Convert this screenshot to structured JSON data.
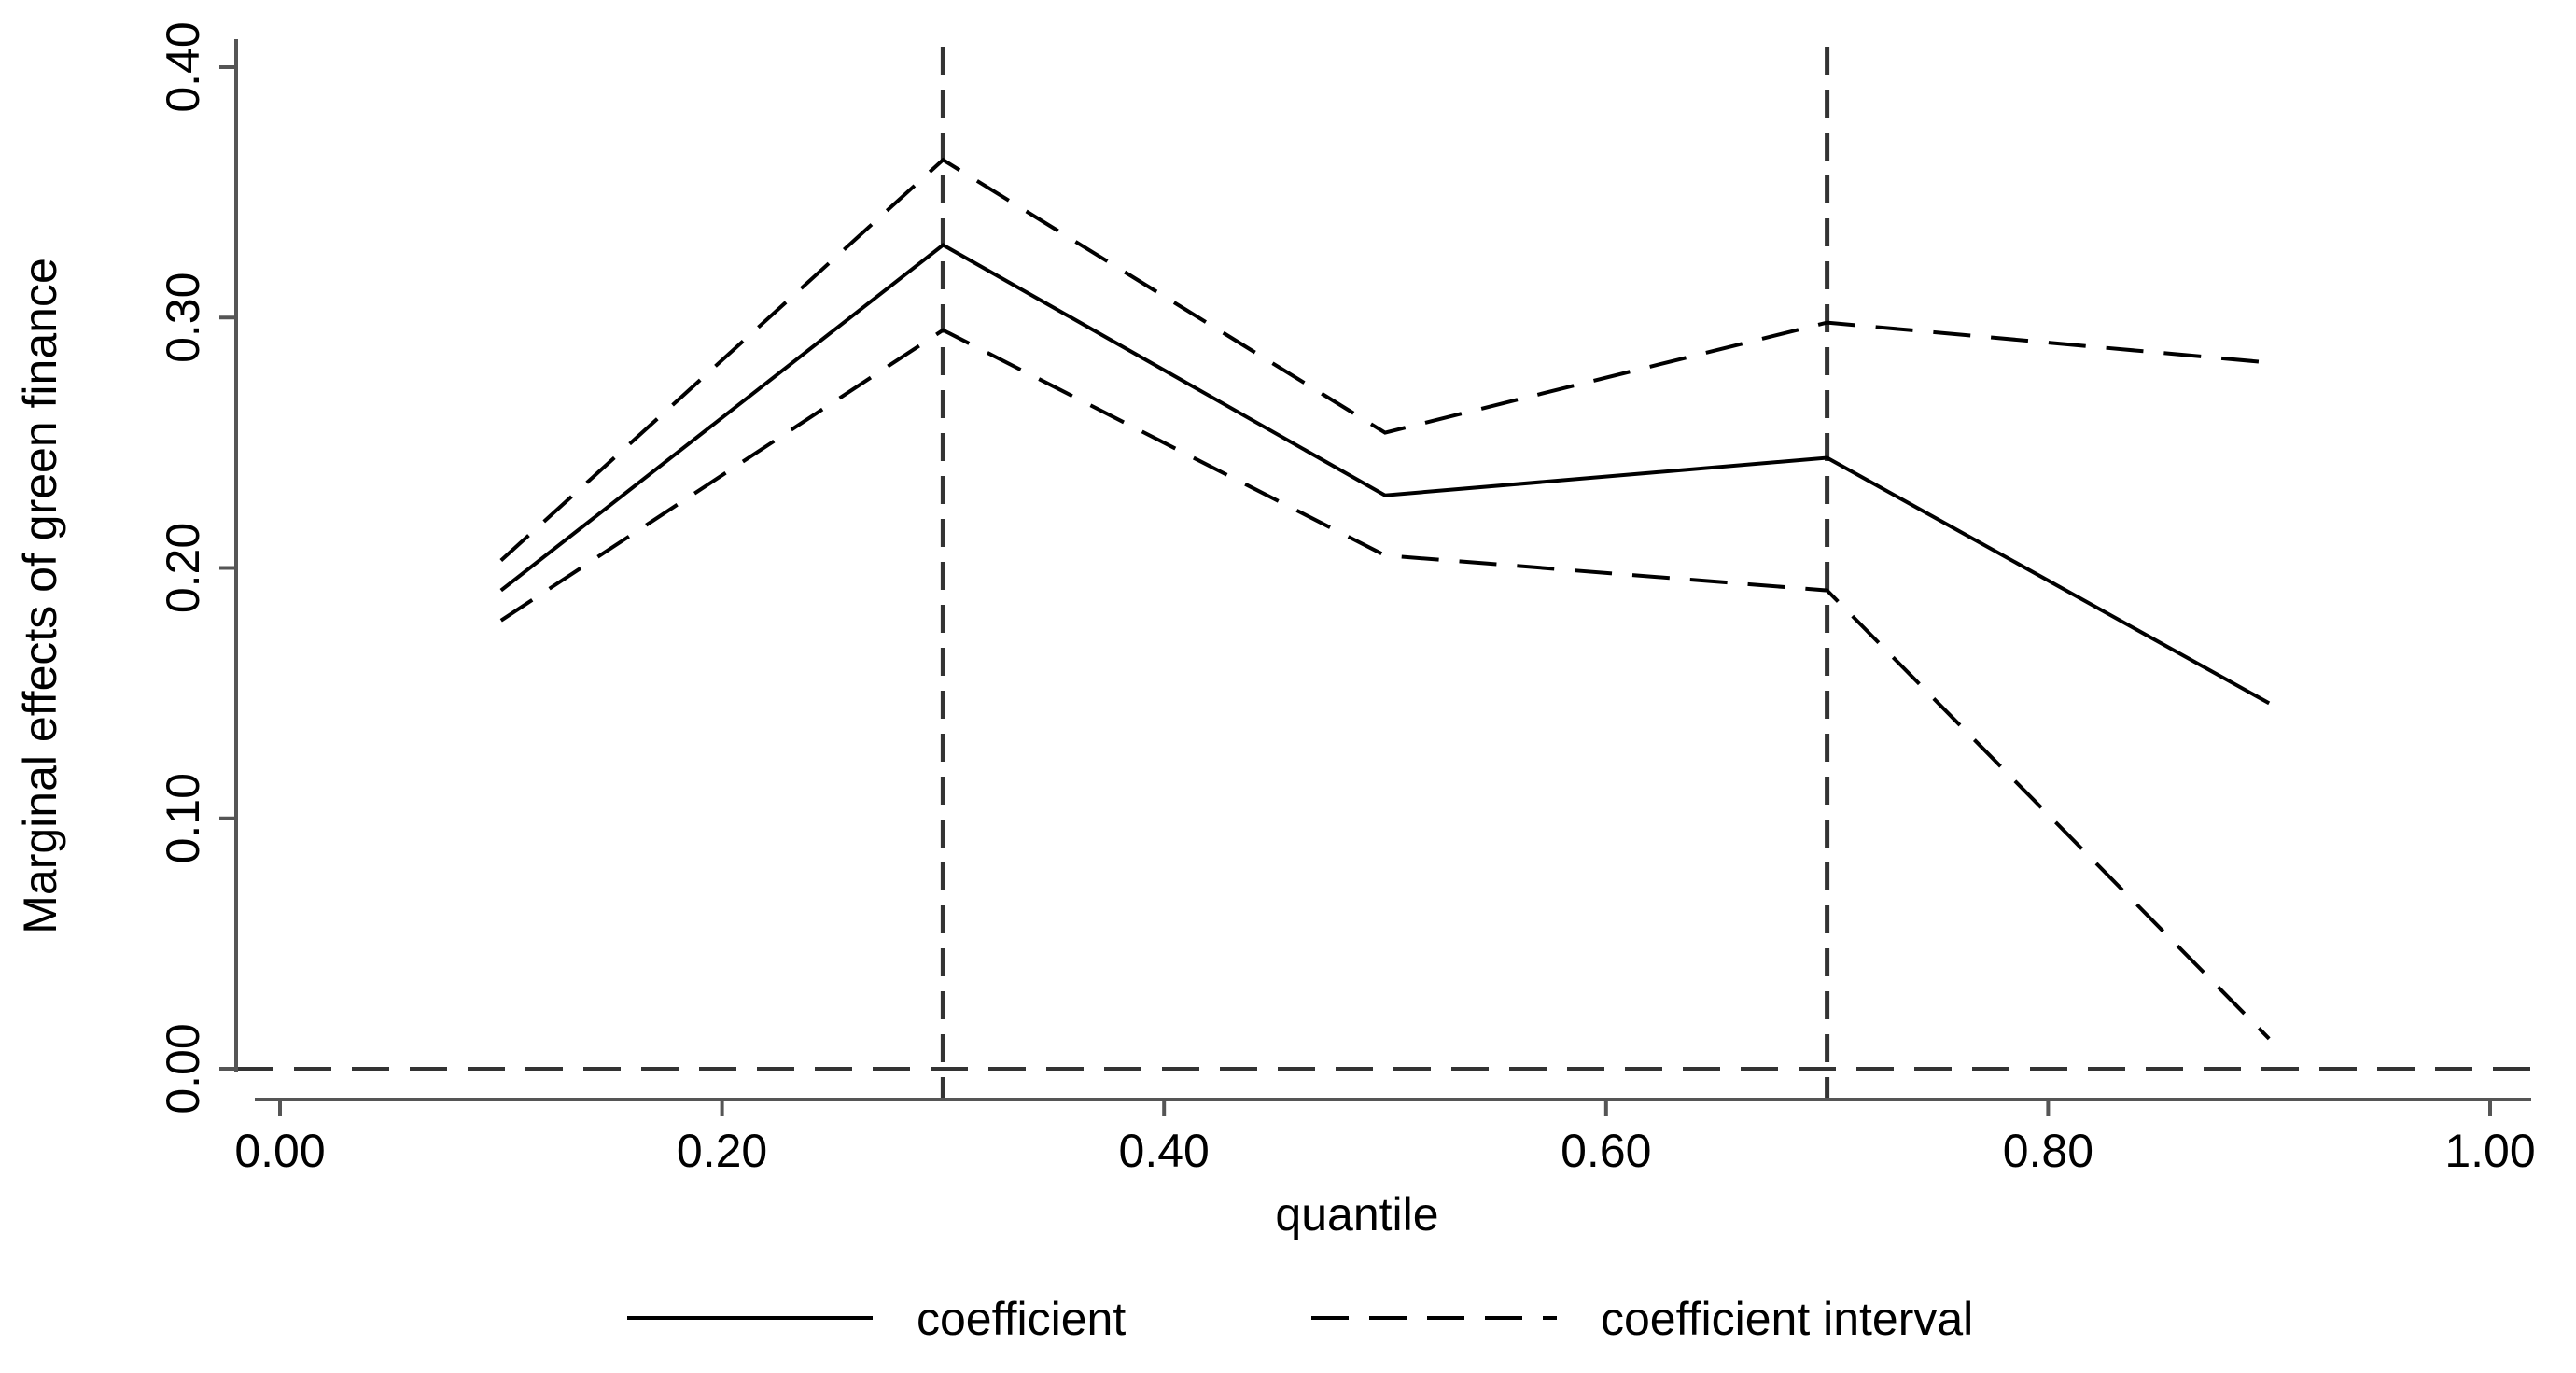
{
  "chart_data": {
    "type": "line",
    "title": "",
    "xlabel": "quantile",
    "ylabel": "Marginal effects of green finance",
    "xlim": [
      0.0,
      1.0
    ],
    "ylim": [
      0.0,
      0.4
    ],
    "x_ticks": [
      0.0,
      0.2,
      0.4,
      0.6,
      0.8,
      1.0
    ],
    "x_tick_labels": [
      "0.00",
      "0.20",
      "0.40",
      "0.60",
      "0.80",
      "1.00"
    ],
    "y_ticks": [
      0.0,
      0.1,
      0.2,
      0.3,
      0.4
    ],
    "y_tick_labels": [
      "0.00",
      "0.10",
      "0.20",
      "0.30",
      "0.40"
    ],
    "x": [
      0.1,
      0.3,
      0.5,
      0.7,
      0.9
    ],
    "series": [
      {
        "name": "coefficient",
        "style": "solid",
        "values": [
          0.191,
          0.329,
          0.229,
          0.244,
          0.146
        ]
      },
      {
        "name": "coefficient interval",
        "style": "dashed",
        "values": [
          0.203,
          0.363,
          0.254,
          0.298,
          0.282
        ]
      },
      {
        "name": "",
        "style": "dashed",
        "values": [
          0.179,
          0.295,
          0.205,
          0.191,
          0.012
        ]
      }
    ],
    "reference_lines": {
      "vertical_x": [
        0.3,
        0.7
      ],
      "horizontal_y": [
        0.0
      ]
    },
    "grid": false,
    "legend": {
      "position": "bottom-center",
      "entries": [
        {
          "label": "coefficient",
          "style": "solid"
        },
        {
          "label": "coefficient interval",
          "style": "dashed"
        }
      ]
    },
    "colors": {
      "line": "#000000",
      "reference": "#333333",
      "axis": "#555555"
    }
  }
}
